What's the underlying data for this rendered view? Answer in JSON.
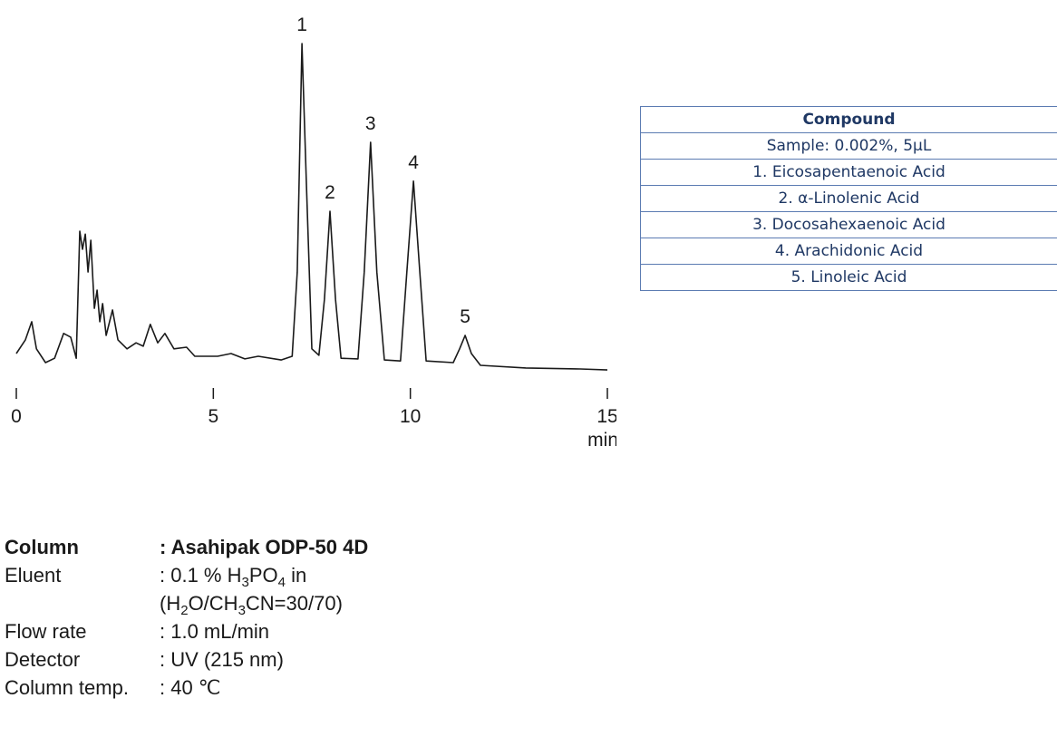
{
  "chart_data": {
    "type": "line",
    "x_label": "min",
    "xlim": [
      0,
      15
    ],
    "xticks": [
      0,
      5,
      10,
      15
    ],
    "ylim": [
      0,
      100
    ],
    "color": "#1a1a1a",
    "x": [
      0,
      0.23,
      0.39,
      0.51,
      0.74,
      0.97,
      1.2,
      1.38,
      1.52,
      1.61,
      1.68,
      1.75,
      1.82,
      1.89,
      1.98,
      2.05,
      2.12,
      2.19,
      2.28,
      2.44,
      2.58,
      2.81,
      3.04,
      3.22,
      3.4,
      3.59,
      3.77,
      4.0,
      4.32,
      4.53,
      5.11,
      5.45,
      5.8,
      6.14,
      6.72,
      7.0,
      7.13,
      7.25,
      7.36,
      7.5,
      7.68,
      7.82,
      7.96,
      8.1,
      8.24,
      8.67,
      8.83,
      8.99,
      9.15,
      9.34,
      9.75,
      9.91,
      10.08,
      10.24,
      10.4,
      11.09,
      11.25,
      11.39,
      11.55,
      11.78,
      12.93,
      14.31,
      15
    ],
    "values": [
      5.4,
      9.5,
      14.9,
      6.8,
      2.7,
      4,
      11.4,
      10.3,
      4,
      41.9,
      36.5,
      41,
      29.7,
      39.2,
      18.9,
      24.3,
      14.9,
      20.3,
      10.8,
      18.4,
      9.5,
      6.8,
      8.6,
      7.6,
      14.1,
      8.6,
      11.4,
      6.8,
      7.3,
      4.6,
      4.6,
      5.4,
      3.8,
      4.6,
      3.5,
      4.6,
      29.7,
      97.8,
      56.8,
      6.8,
      4.9,
      21.6,
      47.8,
      21.6,
      4,
      3.8,
      29.7,
      68.4,
      29.7,
      3.5,
      3.2,
      29.7,
      56.8,
      29.7,
      3.2,
      2.7,
      6.8,
      10.8,
      5.4,
      1.9,
      1.1,
      0.8,
      0.5
    ],
    "peaks": [
      {
        "label": "1",
        "x": 7.25,
        "value": 97.8
      },
      {
        "label": "2",
        "x": 7.96,
        "value": 47.8
      },
      {
        "label": "3",
        "x": 8.99,
        "value": 68.4
      },
      {
        "label": "4",
        "x": 10.08,
        "value": 56.8
      },
      {
        "label": "5",
        "x": 11.39,
        "value": 10.8
      }
    ]
  },
  "table": {
    "header": "Compound",
    "rows": [
      "Sample: 0.002%, 5µL",
      "1. Eicosapentaenoic Acid",
      "2. α-Linolenic Acid",
      "3. Docosahexaenoic Acid",
      "4. Arachidonic Acid",
      "5. Linoleic Acid"
    ]
  },
  "conditions": [
    {
      "label": "Column",
      "lines": [
        [
          ": Asahipak ODP-50 4D"
        ]
      ]
    },
    {
      "label": "Eluent",
      "lines": [
        [
          ": 0.1 % H",
          "3",
          "PO",
          "4",
          " in"
        ],
        [
          "(H",
          "2",
          "O/CH",
          "3",
          "CN=30/70)"
        ]
      ]
    },
    {
      "label": "Flow rate",
      "lines": [
        [
          ": 1.0 mL/min"
        ]
      ]
    },
    {
      "label": "Detector",
      "lines": [
        [
          ": UV (215 nm)"
        ]
      ]
    },
    {
      "label": "Column temp.",
      "lines": [
        [
          ": 40 ℃"
        ]
      ]
    }
  ]
}
